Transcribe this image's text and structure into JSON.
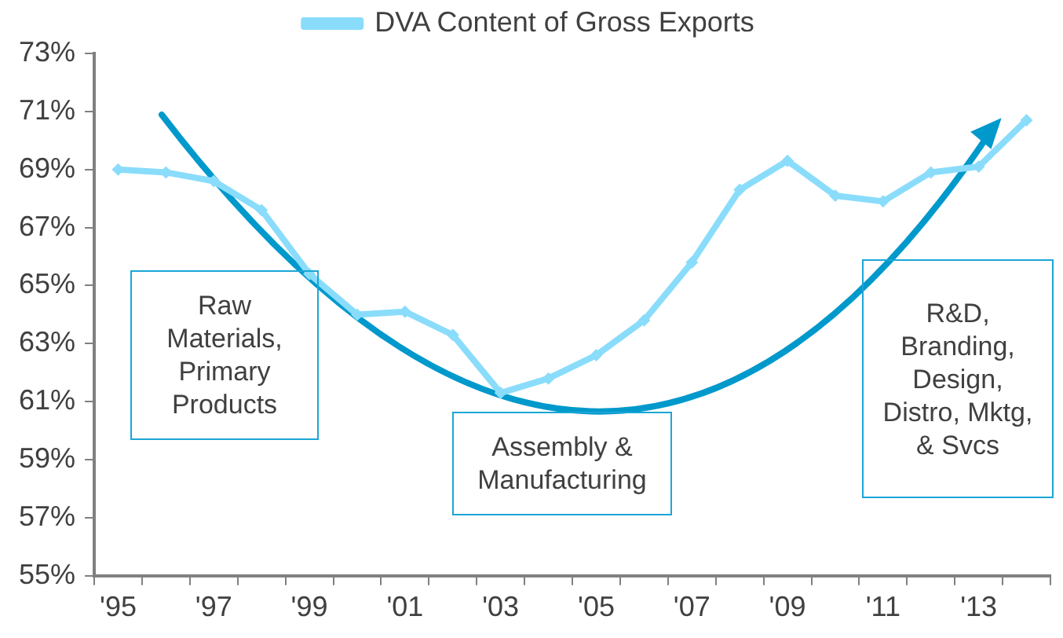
{
  "chart_data": {
    "type": "line",
    "categories": [
      "'95",
      null,
      "'97",
      null,
      "'99",
      null,
      "'01",
      null,
      "'03",
      null,
      "'05",
      null,
      "'07",
      null,
      "'09",
      null,
      "'11",
      null,
      "'13",
      null
    ],
    "series": [
      {
        "name": "DVA Content of Gross Exports",
        "color": "#8adcfb",
        "values": [
          69.0,
          68.9,
          68.6,
          67.6,
          65.4,
          64.0,
          64.1,
          63.3,
          61.3,
          61.8,
          62.6,
          63.8,
          65.8,
          68.3,
          69.3,
          68.1,
          67.9,
          68.9,
          69.1,
          70.7
        ]
      }
    ],
    "ylim": [
      55,
      73
    ],
    "yticks": [
      {
        "value": 55,
        "label": "55%"
      },
      {
        "value": 57,
        "label": "57%"
      },
      {
        "value": 59,
        "label": "59%"
      },
      {
        "value": 61,
        "label": "61%"
      },
      {
        "value": 63,
        "label": "63%"
      },
      {
        "value": 65,
        "label": "65%"
      },
      {
        "value": 67,
        "label": "67%"
      },
      {
        "value": 69,
        "label": "69%"
      },
      {
        "value": 71,
        "label": "71%"
      },
      {
        "value": 73,
        "label": "73%"
      }
    ],
    "annotations": [
      "Raw Materials, Primary Products",
      "Assembly & Manufacturing",
      "R&D, Branding, Design, Distro, Mktg, & Svcs"
    ],
    "grid": false,
    "legend": "top",
    "marker": "diamond",
    "line_style": "solid"
  }
}
